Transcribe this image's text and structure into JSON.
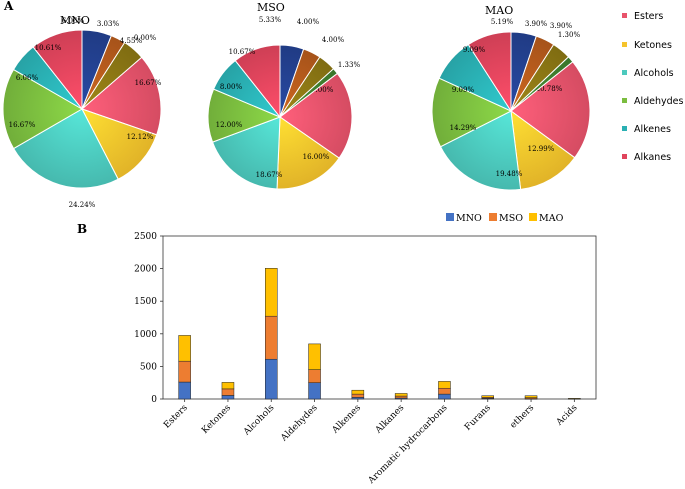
{
  "figure": {
    "panel_a": "A",
    "panel_b": "B"
  },
  "colors": {
    "Esters": "#e8536b",
    "Ketones": "#f5c32c",
    "Alcohols": "#4cc9bd",
    "Aldehydes": "#7bbd3f",
    "Alkenes": "#2ab0b3",
    "Alkanes": "#e0445c",
    "dark_blue": "#23408f",
    "dark_orange": "#b45a1c",
    "dark_olive": "#8a7514",
    "dark_green": "#3f7f2e",
    "MNO": "#4472c4",
    "MSO": "#ed7d31",
    "MAO": "#ffc000"
  },
  "pie_legend": [
    "Esters",
    "Ketones",
    "Alcohols",
    "Aldehydes",
    "Alkenes",
    "Alkanes"
  ],
  "chart_data": [
    {
      "type": "pie",
      "title": "MNO",
      "slices": [
        {
          "label": "16.67%",
          "value": 16.67,
          "color_key": "Esters"
        },
        {
          "label": "12.12%",
          "value": 12.12,
          "color_key": "Ketones"
        },
        {
          "label": "24.24%",
          "value": 24.24,
          "color_key": "Alcohols"
        },
        {
          "label": "16.67%",
          "value": 16.67,
          "color_key": "Aldehydes"
        },
        {
          "label": "6.06%",
          "value": 6.06,
          "color_key": "Alkenes"
        },
        {
          "label": "10.61%",
          "value": 10.61,
          "color_key": "Alkanes"
        },
        {
          "label": "6.06%",
          "value": 6.06,
          "color_key": "dark_blue"
        },
        {
          "label": "3.03%",
          "value": 3.03,
          "color_key": "dark_orange"
        },
        {
          "label": "4.55%",
          "value": 4.55,
          "color_key": "dark_olive"
        },
        {
          "label": "0.00%",
          "value": 0.0,
          "color_key": "dark_green"
        }
      ]
    },
    {
      "type": "pie",
      "title": "MSO",
      "slices": [
        {
          "label": "20.00%",
          "value": 20.0,
          "color_key": "Esters"
        },
        {
          "label": "16.00%",
          "value": 16.0,
          "color_key": "Ketones"
        },
        {
          "label": "18.67%",
          "value": 18.67,
          "color_key": "Alcohols"
        },
        {
          "label": "12.00%",
          "value": 12.0,
          "color_key": "Aldehydes"
        },
        {
          "label": "8.00%",
          "value": 8.0,
          "color_key": "Alkenes"
        },
        {
          "label": "10.67%",
          "value": 10.67,
          "color_key": "Alkanes"
        },
        {
          "label": "5.33%",
          "value": 5.33,
          "color_key": "dark_blue"
        },
        {
          "label": "4.00%",
          "value": 4.0,
          "color_key": "dark_orange"
        },
        {
          "label": "4.00%",
          "value": 4.0,
          "color_key": "dark_olive"
        },
        {
          "label": "1.33%",
          "value": 1.33,
          "color_key": "dark_green"
        }
      ]
    },
    {
      "type": "pie",
      "title": "MAO",
      "slices": [
        {
          "label": "20.78%",
          "value": 20.78,
          "color_key": "Esters"
        },
        {
          "label": "12.99%",
          "value": 12.99,
          "color_key": "Ketones"
        },
        {
          "label": "19.48%",
          "value": 19.48,
          "color_key": "Alcohols"
        },
        {
          "label": "14.29%",
          "value": 14.29,
          "color_key": "Aldehydes"
        },
        {
          "label": "9.09%",
          "value": 9.09,
          "color_key": "Alkenes"
        },
        {
          "label": "9.09%",
          "value": 9.09,
          "color_key": "Alkanes"
        },
        {
          "label": "5.19%",
          "value": 5.19,
          "color_key": "dark_blue"
        },
        {
          "label": "3.90%",
          "value": 3.9,
          "color_key": "dark_orange"
        },
        {
          "label": "3.90%",
          "value": 3.9,
          "color_key": "dark_olive"
        },
        {
          "label": "1.30%",
          "value": 1.3,
          "color_key": "dark_green"
        }
      ]
    },
    {
      "type": "bar",
      "stacked": true,
      "categories": [
        "Esters",
        "Ketones",
        "Alcohols",
        "Aldehydes",
        "Alkenes",
        "Alkanes",
        "Aromatic hydrocarbons",
        "Furans",
        "ethers",
        "Acids"
      ],
      "series": [
        {
          "name": "MNO",
          "values": [
            260,
            55,
            610,
            250,
            25,
            15,
            75,
            10,
            5,
            0
          ]
        },
        {
          "name": "MSO",
          "values": [
            320,
            100,
            660,
            200,
            50,
            30,
            90,
            15,
            15,
            5
          ]
        },
        {
          "name": "MAO",
          "values": [
            395,
            100,
            735,
            395,
            60,
            40,
            105,
            25,
            30,
            5
          ]
        }
      ],
      "ylim": [
        0,
        2500
      ],
      "yticks": [
        "0",
        "500",
        "1000",
        "1500",
        "2000",
        "2500"
      ],
      "legend": "top-right"
    }
  ]
}
